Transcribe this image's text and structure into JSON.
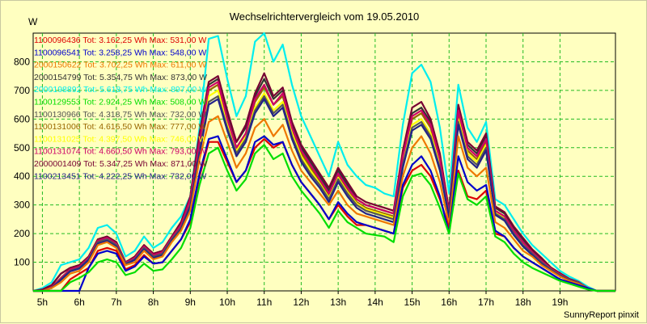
{
  "chart_data": {
    "type": "line",
    "title": "Wechselrichtervergleich vom 19.05.2010",
    "ylabel": "W",
    "xlabel": "",
    "footer": "SunnyReport pinxit",
    "ylim": [
      0,
      900
    ],
    "yticks": [
      100,
      200,
      300,
      400,
      500,
      600,
      700,
      800
    ],
    "xlim": [
      4.75,
      20.5
    ],
    "xticks": [
      {
        "v": 5,
        "label": "5h"
      },
      {
        "v": 6,
        "label": "6h"
      },
      {
        "v": 7,
        "label": "7h"
      },
      {
        "v": 8,
        "label": "8h"
      },
      {
        "v": 9,
        "label": "9h"
      },
      {
        "v": 10,
        "label": "10h"
      },
      {
        "v": 11,
        "label": "11h"
      },
      {
        "v": 12,
        "label": "12h"
      },
      {
        "v": 13,
        "label": "13h"
      },
      {
        "v": 14,
        "label": "14h"
      },
      {
        "v": 15,
        "label": "15h"
      },
      {
        "v": 16,
        "label": "16h"
      },
      {
        "v": 17,
        "label": "17h"
      },
      {
        "v": 18,
        "label": "18h"
      },
      {
        "v": 19,
        "label": "19h"
      }
    ],
    "grid": true,
    "legend_position": "top-left",
    "x": [
      4.75,
      5.0,
      5.25,
      5.5,
      5.75,
      6.0,
      6.25,
      6.5,
      6.75,
      7.0,
      7.25,
      7.5,
      7.75,
      8.0,
      8.25,
      8.5,
      8.75,
      9.0,
      9.25,
      9.5,
      9.75,
      10.0,
      10.25,
      10.5,
      10.75,
      11.0,
      11.25,
      11.5,
      11.75,
      12.0,
      12.25,
      12.5,
      12.75,
      13.0,
      13.25,
      13.5,
      13.75,
      14.0,
      14.25,
      14.5,
      14.75,
      15.0,
      15.25,
      15.5,
      15.75,
      16.0,
      16.25,
      16.5,
      16.75,
      17.0,
      17.25,
      17.5,
      17.75,
      18.0,
      18.25,
      18.5,
      18.75,
      19.0,
      19.25,
      19.5,
      19.75,
      20.0,
      20.25,
      20.5
    ],
    "series": [
      {
        "name": "1100096436",
        "legend": "Tot: 3.162,25 Wh Max: 531,00 W",
        "color": "#DD0000",
        "values": [
          0,
          0,
          0,
          0,
          40,
          60,
          80,
          140,
          150,
          140,
          75,
          90,
          125,
          95,
          100,
          140,
          180,
          240,
          400,
          520,
          520,
          450,
          380,
          420,
          500,
          530,
          500,
          520,
          440,
          380,
          340,
          300,
          250,
          300,
          260,
          230,
          230,
          220,
          210,
          200,
          360,
          420,
          440,
          400,
          320,
          220,
          420,
          330,
          320,
          350,
          200,
          190,
          150,
          120,
          100,
          80,
          60,
          40,
          30,
          20,
          10,
          0,
          0,
          0
        ]
      },
      {
        "name": "1100096541",
        "legend": "Tot: 3.258,25 Wh Max: 548,00 W",
        "color": "#0000CC",
        "values": [
          0,
          0,
          0,
          0,
          0,
          0,
          80,
          130,
          140,
          130,
          70,
          85,
          120,
          95,
          100,
          140,
          180,
          250,
          410,
          530,
          540,
          460,
          380,
          420,
          520,
          540,
          510,
          520,
          440,
          380,
          340,
          300,
          250,
          310,
          270,
          240,
          230,
          220,
          210,
          200,
          370,
          440,
          470,
          420,
          330,
          200,
          470,
          380,
          350,
          370,
          210,
          190,
          150,
          120,
          100,
          80,
          60,
          40,
          30,
          20,
          10,
          0,
          0,
          0
        ]
      },
      {
        "name": "2000150622",
        "legend": "Tot: 3.702,25 Wh Max: 611,00 W",
        "color": "#EE7700",
        "values": [
          0,
          0,
          10,
          30,
          60,
          70,
          100,
          160,
          170,
          150,
          90,
          100,
          140,
          110,
          120,
          170,
          210,
          280,
          460,
          590,
          610,
          520,
          430,
          480,
          570,
          600,
          540,
          580,
          490,
          420,
          380,
          340,
          300,
          350,
          300,
          270,
          260,
          250,
          240,
          230,
          400,
          500,
          540,
          480,
          380,
          230,
          540,
          430,
          400,
          430,
          240,
          220,
          180,
          140,
          120,
          90,
          70,
          50,
          35,
          25,
          10,
          0,
          0,
          0
        ]
      },
      {
        "name": "2000154799",
        "legend": "Tot: 5.354,75 Wh Max: 873,00 W",
        "color": "#333333",
        "values": [
          0,
          5,
          20,
          60,
          80,
          90,
          120,
          180,
          190,
          170,
          100,
          120,
          160,
          130,
          140,
          190,
          240,
          330,
          540,
          720,
          740,
          620,
          520,
          570,
          680,
          740,
          670,
          700,
          580,
          500,
          450,
          400,
          350,
          420,
          370,
          320,
          300,
          290,
          280,
          270,
          480,
          620,
          640,
          590,
          470,
          280,
          640,
          510,
          480,
          540,
          290,
          270,
          220,
          180,
          140,
          110,
          80,
          60,
          40,
          30,
          10,
          0,
          0,
          0
        ]
      },
      {
        "name": "2000198892",
        "legend": "Tot: 5.618,75 Wh Max: 897,00 W",
        "color": "#00EEEE",
        "values": [
          0,
          10,
          30,
          90,
          100,
          110,
          150,
          220,
          230,
          200,
          120,
          140,
          190,
          150,
          170,
          220,
          260,
          330,
          570,
          880,
          890,
          740,
          610,
          680,
          870,
          900,
          800,
          860,
          720,
          610,
          540,
          470,
          400,
          520,
          440,
          400,
          370,
          360,
          340,
          330,
          580,
          760,
          790,
          730,
          570,
          340,
          720,
          570,
          520,
          590,
          320,
          300,
          250,
          200,
          160,
          130,
          100,
          70,
          50,
          35,
          15,
          0,
          0,
          0
        ]
      },
      {
        "name": "1100129553",
        "legend": "Tot: 2.924,25 Wh Max: 508,00 W",
        "color": "#00DD00",
        "values": [
          0,
          0,
          0,
          0,
          30,
          45,
          65,
          100,
          110,
          100,
          55,
          65,
          95,
          70,
          75,
          110,
          150,
          220,
          370,
          480,
          500,
          420,
          350,
          390,
          480,
          510,
          460,
          480,
          400,
          350,
          310,
          270,
          220,
          280,
          240,
          220,
          200,
          195,
          190,
          170,
          330,
          400,
          410,
          370,
          290,
          200,
          410,
          320,
          300,
          330,
          190,
          170,
          130,
          100,
          80,
          65,
          50,
          35,
          25,
          15,
          5,
          0,
          0,
          0
        ]
      },
      {
        "name": "1100130966",
        "legend": "Tot: 4.318,75 Wh Max: 732,00 W",
        "color": "#555555",
        "values": [
          0,
          0,
          10,
          40,
          70,
          80,
          110,
          170,
          180,
          160,
          95,
          110,
          150,
          120,
          130,
          180,
          220,
          300,
          490,
          660,
          680,
          570,
          480,
          530,
          630,
          680,
          620,
          650,
          540,
          460,
          410,
          370,
          320,
          390,
          340,
          300,
          280,
          270,
          260,
          250,
          440,
          570,
          590,
          540,
          430,
          260,
          590,
          470,
          440,
          500,
          270,
          250,
          200,
          160,
          130,
          100,
          75,
          55,
          38,
          28,
          10,
          0,
          0,
          0
        ]
      },
      {
        "name": "1100131006",
        "legend": "Tot: 4.616,50 Wh Max: 777,00 W",
        "color": "#996600",
        "values": [
          0,
          0,
          12,
          45,
          75,
          85,
          115,
          175,
          185,
          165,
          98,
          115,
          155,
          125,
          135,
          185,
          230,
          320,
          520,
          700,
          720,
          600,
          500,
          550,
          660,
          710,
          650,
          680,
          560,
          480,
          430,
          380,
          330,
          400,
          350,
          310,
          290,
          280,
          270,
          260,
          460,
          600,
          620,
          570,
          450,
          270,
          620,
          490,
          460,
          520,
          280,
          260,
          210,
          170,
          135,
          105,
          78,
          58,
          39,
          29,
          10,
          0,
          0,
          0
        ]
      },
      {
        "name": "1100131025",
        "legend": "Tot: 4.397,50 Wh Max: 746,00 W",
        "color": "#FFFF00",
        "values": [
          0,
          0,
          11,
          42,
          72,
          82,
          112,
          172,
          182,
          162,
          96,
          112,
          152,
          122,
          132,
          182,
          225,
          310,
          500,
          680,
          700,
          580,
          490,
          540,
          640,
          690,
          630,
          660,
          550,
          470,
          420,
          375,
          325,
          395,
          345,
          305,
          285,
          275,
          265,
          255,
          450,
          580,
          600,
          550,
          440,
          265,
          600,
          480,
          450,
          510,
          275,
          255,
          205,
          165,
          132,
          102,
          76,
          56,
          38,
          28,
          10,
          0,
          0,
          0
        ]
      },
      {
        "name": "1100131074",
        "legend": "Tot: 4.660,50 Wh Max: 793,00 W",
        "color": "#CC0066",
        "values": [
          0,
          0,
          12,
          45,
          75,
          85,
          115,
          175,
          185,
          165,
          98,
          115,
          155,
          125,
          135,
          185,
          230,
          320,
          520,
          710,
          730,
          600,
          500,
          550,
          670,
          720,
          650,
          690,
          570,
          490,
          440,
          390,
          340,
          410,
          360,
          320,
          300,
          290,
          280,
          270,
          470,
          610,
          630,
          580,
          460,
          270,
          630,
          500,
          470,
          530,
          280,
          260,
          210,
          170,
          135,
          105,
          78,
          58,
          39,
          29,
          10,
          0,
          0,
          0
        ]
      },
      {
        "name": "2000001409",
        "legend": "Tot: 5.347,25 Wh Max: 871,00 W",
        "color": "#770033",
        "values": [
          0,
          5,
          20,
          60,
          80,
          90,
          120,
          180,
          190,
          170,
          100,
          120,
          160,
          130,
          140,
          190,
          240,
          330,
          550,
          730,
          750,
          630,
          520,
          580,
          690,
          760,
          680,
          710,
          590,
          510,
          460,
          410,
          360,
          430,
          380,
          330,
          310,
          300,
          290,
          280,
          490,
          640,
          660,
          600,
          480,
          280,
          650,
          520,
          490,
          550,
          295,
          275,
          225,
          185,
          145,
          115,
          82,
          62,
          42,
          31,
          10,
          0,
          0,
          0
        ]
      },
      {
        "name": "1100213451",
        "legend": "Tot: 4.222,25 Wh Max: 732,00 W",
        "color": "#222288",
        "values": [
          0,
          0,
          10,
          38,
          68,
          78,
          108,
          165,
          175,
          155,
          92,
          108,
          145,
          115,
          125,
          175,
          215,
          295,
          480,
          650,
          670,
          560,
          470,
          520,
          620,
          670,
          610,
          640,
          530,
          450,
          400,
          360,
          310,
          380,
          330,
          290,
          270,
          260,
          250,
          240,
          430,
          560,
          580,
          530,
          420,
          255,
          580,
          460,
          430,
          490,
          265,
          245,
          195,
          155,
          125,
          95,
          72,
          52,
          36,
          26,
          10,
          0,
          0,
          0
        ]
      }
    ]
  }
}
